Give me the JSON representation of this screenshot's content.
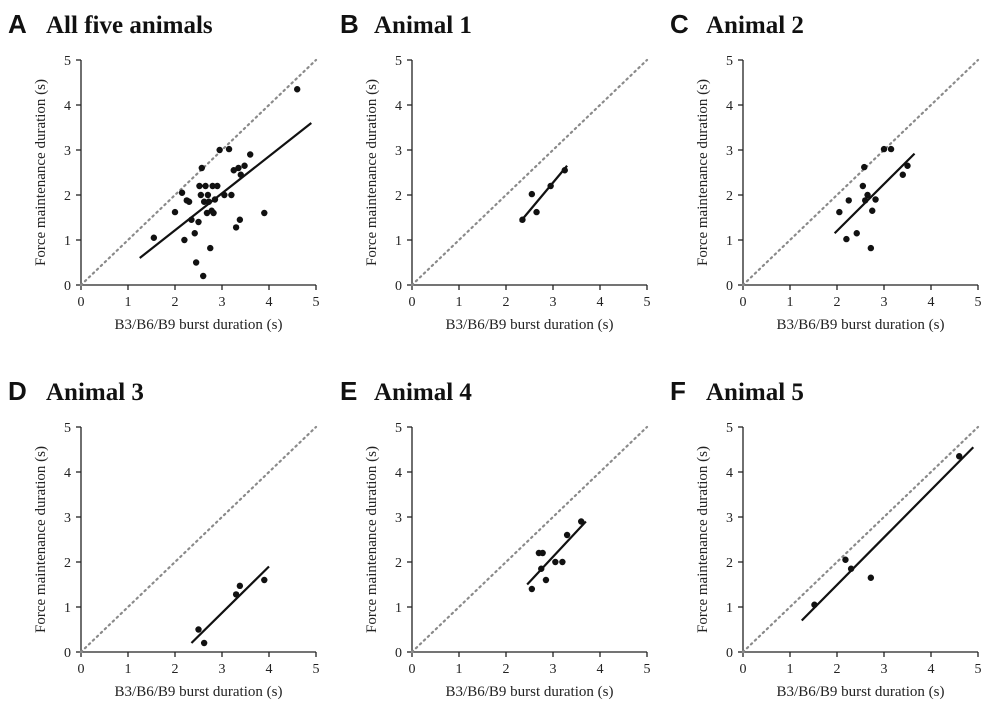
{
  "chart_data": [
    {
      "type": "scatter",
      "panel": "A",
      "title": "All five animals",
      "xlabel": "B3/B6/B9 burst duration (s)",
      "ylabel": "Force maintenance duration (s)",
      "xlim": [
        0,
        5
      ],
      "ylim": [
        0,
        5
      ],
      "xticks": [
        "0",
        "1",
        "2",
        "3",
        "4",
        "5"
      ],
      "yticks": [
        "0",
        "1",
        "2",
        "3",
        "4",
        "5"
      ],
      "identity_line": true,
      "fit": [
        [
          1.25,
          0.6
        ],
        [
          4.9,
          3.6
        ]
      ],
      "points": [
        [
          1.55,
          1.05
        ],
        [
          2.0,
          1.62
        ],
        [
          2.15,
          2.05
        ],
        [
          2.2,
          1.0
        ],
        [
          2.25,
          1.88
        ],
        [
          2.3,
          1.85
        ],
        [
          2.35,
          1.45
        ],
        [
          2.42,
          1.15
        ],
        [
          2.45,
          0.5
        ],
        [
          2.5,
          1.4
        ],
        [
          2.52,
          2.2
        ],
        [
          2.55,
          2.0
        ],
        [
          2.57,
          2.6
        ],
        [
          2.6,
          0.2
        ],
        [
          2.62,
          1.85
        ],
        [
          2.65,
          2.2
        ],
        [
          2.68,
          1.6
        ],
        [
          2.7,
          2.0
        ],
        [
          2.72,
          1.85
        ],
        [
          2.75,
          0.82
        ],
        [
          2.78,
          1.65
        ],
        [
          2.8,
          2.2
        ],
        [
          2.82,
          1.6
        ],
        [
          2.85,
          1.9
        ],
        [
          2.9,
          2.2
        ],
        [
          2.95,
          3.0
        ],
        [
          3.05,
          2.0
        ],
        [
          3.15,
          3.02
        ],
        [
          3.2,
          2.0
        ],
        [
          3.25,
          2.55
        ],
        [
          3.3,
          1.28
        ],
        [
          3.35,
          2.6
        ],
        [
          3.38,
          1.45
        ],
        [
          3.4,
          2.45
        ],
        [
          3.48,
          2.65
        ],
        [
          3.6,
          2.9
        ],
        [
          3.9,
          1.6
        ],
        [
          4.6,
          4.35
        ]
      ]
    },
    {
      "type": "scatter",
      "panel": "B",
      "title": "Animal 1",
      "xlabel": "B3/B6/B9 burst duration (s)",
      "ylabel": "Force maintenance duration (s)",
      "xlim": [
        0,
        5
      ],
      "ylim": [
        0,
        5
      ],
      "xticks": [
        "0",
        "1",
        "2",
        "3",
        "4",
        "5"
      ],
      "yticks": [
        "0",
        "1",
        "2",
        "3",
        "4",
        "5"
      ],
      "identity_line": true,
      "fit": [
        [
          2.3,
          1.4
        ],
        [
          3.3,
          2.65
        ]
      ],
      "points": [
        [
          2.35,
          1.45
        ],
        [
          2.55,
          2.02
        ],
        [
          2.65,
          1.62
        ],
        [
          2.95,
          2.2
        ],
        [
          3.25,
          2.55
        ]
      ]
    },
    {
      "type": "scatter",
      "panel": "C",
      "title": "Animal 2",
      "xlabel": "B3/B6/B9 burst duration (s)",
      "ylabel": "Force maintenance duration (s)",
      "xlim": [
        0,
        5
      ],
      "ylim": [
        0,
        5
      ],
      "xticks": [
        "0",
        "1",
        "2",
        "3",
        "4",
        "5"
      ],
      "yticks": [
        "0",
        "1",
        "2",
        "3",
        "4",
        "5"
      ],
      "identity_line": true,
      "fit": [
        [
          1.95,
          1.15
        ],
        [
          3.65,
          2.92
        ]
      ],
      "points": [
        [
          2.05,
          1.62
        ],
        [
          2.2,
          1.02
        ],
        [
          2.25,
          1.88
        ],
        [
          2.42,
          1.15
        ],
        [
          2.55,
          2.2
        ],
        [
          2.58,
          2.62
        ],
        [
          2.6,
          1.88
        ],
        [
          2.65,
          2.0
        ],
        [
          2.72,
          0.82
        ],
        [
          2.75,
          1.65
        ],
        [
          2.82,
          1.9
        ],
        [
          3.0,
          3.02
        ],
        [
          3.15,
          3.02
        ],
        [
          3.4,
          2.45
        ],
        [
          3.5,
          2.65
        ]
      ]
    },
    {
      "type": "scatter",
      "panel": "D",
      "title": "Animal 3",
      "xlabel": "B3/B6/B9 burst duration (s)",
      "ylabel": "Force maintenance duration (s)",
      "xlim": [
        0,
        5
      ],
      "ylim": [
        0,
        5
      ],
      "xticks": [
        "0",
        "1",
        "2",
        "3",
        "4",
        "5"
      ],
      "yticks": [
        "0",
        "1",
        "2",
        "3",
        "4",
        "5"
      ],
      "identity_line": true,
      "fit": [
        [
          2.35,
          0.2
        ],
        [
          4.0,
          1.9
        ]
      ],
      "points": [
        [
          2.5,
          0.5
        ],
        [
          2.62,
          0.2
        ],
        [
          3.3,
          1.28
        ],
        [
          3.38,
          1.47
        ],
        [
          3.9,
          1.6
        ]
      ]
    },
    {
      "type": "scatter",
      "panel": "E",
      "title": "Animal 4",
      "xlabel": "B3/B6/B9 burst duration (s)",
      "ylabel": "Force maintenance duration (s)",
      "xlim": [
        0,
        5
      ],
      "ylim": [
        0,
        5
      ],
      "xticks": [
        "0",
        "1",
        "2",
        "3",
        "4",
        "5"
      ],
      "yticks": [
        "0",
        "1",
        "2",
        "3",
        "4",
        "5"
      ],
      "identity_line": true,
      "fit": [
        [
          2.45,
          1.5
        ],
        [
          3.7,
          2.9
        ]
      ],
      "points": [
        [
          2.55,
          1.4
        ],
        [
          2.7,
          2.2
        ],
        [
          2.75,
          1.85
        ],
        [
          2.78,
          2.2
        ],
        [
          2.85,
          1.6
        ],
        [
          3.05,
          2.0
        ],
        [
          3.2,
          2.0
        ],
        [
          3.3,
          2.6
        ],
        [
          3.6,
          2.9
        ]
      ]
    },
    {
      "type": "scatter",
      "panel": "F",
      "title": "Animal 5",
      "xlabel": "B3/B6/B9 burst duration (s)",
      "ylabel": "Force maintenance duration (s)",
      "xlim": [
        0,
        5
      ],
      "ylim": [
        0,
        5
      ],
      "xticks": [
        "0",
        "1",
        "2",
        "3",
        "4",
        "5"
      ],
      "yticks": [
        "0",
        "1",
        "2",
        "3",
        "4",
        "5"
      ],
      "identity_line": true,
      "fit": [
        [
          1.25,
          0.7
        ],
        [
          4.9,
          4.55
        ]
      ],
      "points": [
        [
          1.52,
          1.05
        ],
        [
          2.18,
          2.05
        ],
        [
          2.3,
          1.85
        ],
        [
          2.72,
          1.65
        ],
        [
          4.6,
          4.35
        ]
      ]
    }
  ]
}
